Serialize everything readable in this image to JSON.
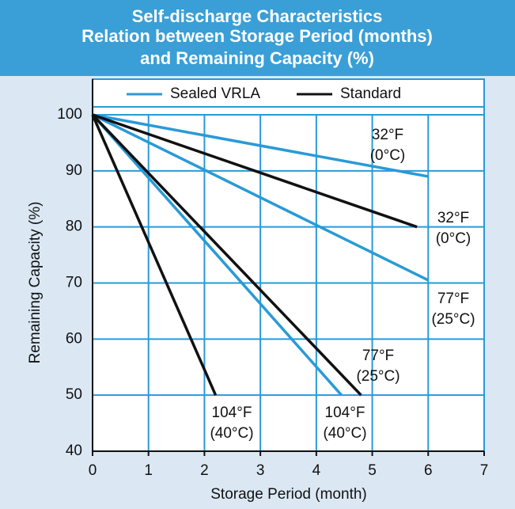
{
  "chart_data": {
    "type": "line",
    "title": [
      "Self-discharge Characteristics",
      "Relation between Storage Period (months)",
      "and Remaining Capacity (%)"
    ],
    "xlabel": "Storage Period (month)",
    "ylabel": "Remaining Capacity (%)",
    "xlim": [
      0,
      7
    ],
    "xticks": [
      0,
      1,
      2,
      3,
      4,
      5,
      6,
      7
    ],
    "ylim": [
      40,
      100
    ],
    "yticks": [
      40,
      50,
      60,
      70,
      80,
      90,
      100
    ],
    "grid": true,
    "series": [
      {
        "name": "Sealed VRLA",
        "color": "#2a9ad6",
        "lines": [
          {
            "x": [
              0,
              6
            ],
            "values": [
              100,
              89
            ],
            "label": [
              "32°F",
              "(0°C)"
            ]
          },
          {
            "x": [
              0,
              6
            ],
            "values": [
              100,
              70.5
            ],
            "label": [
              "77°F",
              "(25°C)"
            ]
          },
          {
            "x": [
              0,
              4.45
            ],
            "values": [
              100,
              50
            ],
            "label": [
              "104°F",
              "(40°C)"
            ]
          }
        ]
      },
      {
        "name": "Standard",
        "color": "#111111",
        "lines": [
          {
            "x": [
              0,
              5.8
            ],
            "values": [
              100,
              80
            ],
            "label": [
              "32°F",
              "(0°C)"
            ]
          },
          {
            "x": [
              0,
              4.8
            ],
            "values": [
              100,
              50
            ],
            "label": [
              "77°F",
              "(25°C)"
            ]
          },
          {
            "x": [
              0,
              2.2
            ],
            "values": [
              100,
              50
            ],
            "label": [
              "104°F",
              "(40°C)"
            ]
          }
        ]
      }
    ]
  }
}
